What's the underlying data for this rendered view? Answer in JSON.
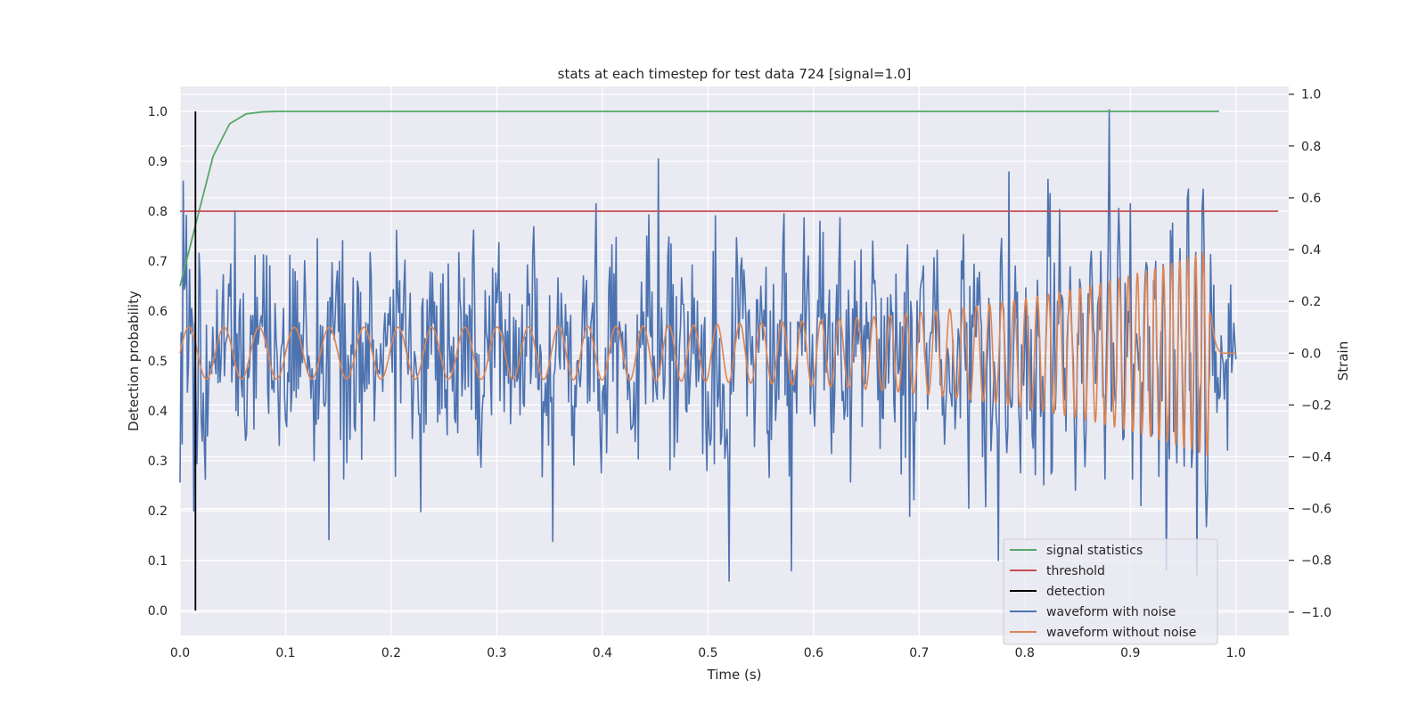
{
  "chart_data": {
    "type": "line",
    "title": "stats at each timestep for test data 724 [signal=1.0]",
    "xlabel": "Time (s)",
    "ylabel": "Detection probability",
    "y2label": "Strain",
    "xlim": [
      0.0,
      1.05
    ],
    "ylim": [
      -0.05,
      1.05
    ],
    "y2lim": [
      -1.09,
      1.03
    ],
    "xticks": [
      "0.0",
      "0.1",
      "0.2",
      "0.3",
      "0.4",
      "0.5",
      "0.6",
      "0.7",
      "0.8",
      "0.9",
      "1.0"
    ],
    "yticks": [
      "0.0",
      "0.1",
      "0.2",
      "0.3",
      "0.4",
      "0.5",
      "0.6",
      "0.7",
      "0.8",
      "0.9",
      "1.0"
    ],
    "y2ticks": [
      "−1.0",
      "−0.8",
      "−0.6",
      "−0.4",
      "−0.2",
      "0.0",
      "0.2",
      "0.4",
      "0.6",
      "0.8",
      "1.0"
    ],
    "grid": true,
    "legend_position": "lower-right",
    "series": [
      {
        "name": "signal statistics",
        "color": "#55a868",
        "axis": "left",
        "x": [
          0.0,
          0.0156,
          0.0313,
          0.0469,
          0.0625,
          0.0781,
          0.0938,
          0.1094,
          0.2,
          0.3,
          0.4,
          0.5,
          0.6,
          0.7,
          0.8,
          0.9,
          0.984
        ],
        "y": [
          0.65,
          0.78,
          0.91,
          0.975,
          0.995,
          0.999,
          1.0,
          1.0,
          1.0,
          1.0,
          1.0,
          1.0,
          1.0,
          1.0,
          1.0,
          1.0,
          1.0
        ]
      },
      {
        "name": "threshold",
        "color": "#c44e52",
        "axis": "left",
        "x": [
          0.0,
          1.04
        ],
        "y": [
          0.8,
          0.8
        ]
      },
      {
        "name": "detection",
        "color": "#000000",
        "axis": "left",
        "x": [
          0.0146,
          0.0146
        ],
        "y": [
          0.0,
          1.0
        ]
      },
      {
        "name": "waveform with noise",
        "color": "#4c72b0",
        "axis": "right",
        "noise_std": 0.21,
        "peaks": [
          {
            "x": 0.002,
            "y": -0.35
          },
          {
            "x": 0.052,
            "y": 0.55
          },
          {
            "x": 0.141,
            "y": -0.72
          },
          {
            "x": 0.453,
            "y": 0.75
          },
          {
            "x": 0.52,
            "y": -0.88
          },
          {
            "x": 0.88,
            "y": 0.94
          },
          {
            "x": 0.775,
            "y": -0.8
          },
          {
            "x": 0.963,
            "y": -0.86
          },
          {
            "x": 0.785,
            "y": 0.7
          }
        ]
      },
      {
        "name": "waveform without noise",
        "color": "#dd8452",
        "axis": "right",
        "model": "chirp",
        "f0_hz": 30,
        "f1_hz": 140,
        "amp_start": 0.1,
        "amp_peak": 0.4,
        "merger_time": 0.975,
        "ringdown_end": 0.985
      }
    ]
  }
}
